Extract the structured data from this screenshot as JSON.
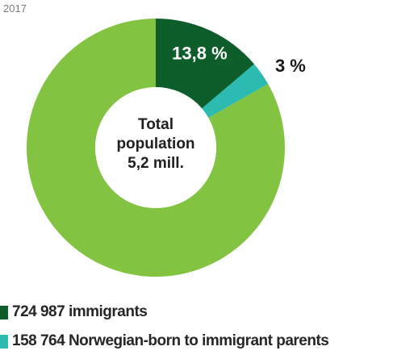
{
  "year_label": "2017",
  "center": {
    "line1": "Total",
    "line2": "population",
    "line3": "5,2 mill."
  },
  "colors": {
    "immigrants": "#0e5e2b",
    "norwegian_born": "#2bbbb0",
    "rest": "#82c341"
  },
  "legend": [
    {
      "label": "724 987 immigrants",
      "color": "#0e5e2b"
    },
    {
      "label": "158 764 Norwegian-born to immigrant parents",
      "color": "#2bbbb0"
    }
  ],
  "chart_data": {
    "type": "pie",
    "title": "",
    "donut": true,
    "slices": [
      {
        "label": "13,8 %",
        "value": 13.8,
        "color": "#0e5e2b",
        "label_position": "inside"
      },
      {
        "label": "3 %",
        "value": 3.0,
        "color": "#2bbbb0",
        "label_position": "outside"
      },
      {
        "label": "",
        "value": 83.2,
        "color": "#82c341",
        "label_position": "none"
      }
    ],
    "legend_position": "bottom-left"
  }
}
